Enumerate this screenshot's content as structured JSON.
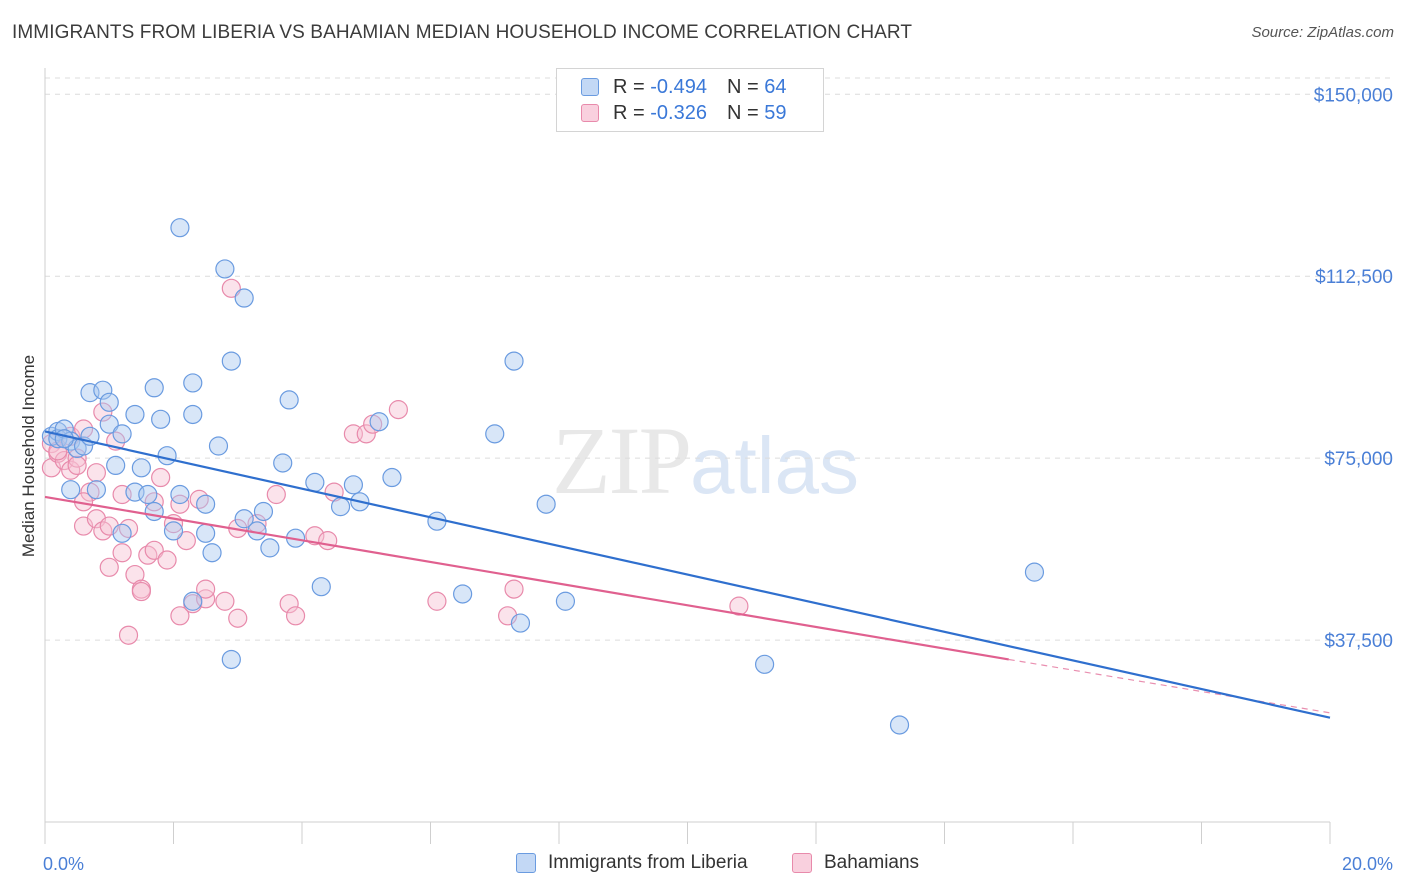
{
  "header": {
    "title": "IMMIGRANTS FROM LIBERIA VS BAHAMIAN MEDIAN HOUSEHOLD INCOME CORRELATION CHART",
    "source": "Source: ZipAtlas.com"
  },
  "watermark": {
    "zip": "ZIP",
    "atlas": "atlas"
  },
  "legend": {
    "rows": [
      {
        "r_label": "R = ",
        "r_value": "-0.494",
        "n_label": "N = ",
        "n_value": "64"
      },
      {
        "r_label": "R = ",
        "r_value": "-0.326",
        "n_label": "N = ",
        "n_value": "59"
      }
    ]
  },
  "colors": {
    "blue_fill": "#a9c8f0",
    "blue_stroke": "#6a9be0",
    "blue_line": "#2f6fce",
    "pink_fill": "#f6c0d2",
    "pink_stroke": "#e88aab",
    "pink_line": "#e0608f",
    "grid": "#dcdcdc",
    "tick_text": "#4a7fd6"
  },
  "chart_data": {
    "type": "scatter",
    "title": "IMMIGRANTS FROM LIBERIA VS BAHAMIAN MEDIAN HOUSEHOLD INCOME CORRELATION CHART",
    "xlabel": "",
    "ylabel": "Median Household Income",
    "xlim": [
      0,
      20
    ],
    "ylim": [
      0,
      155000
    ],
    "x_tick_labels": [
      "0.0%",
      "20.0%"
    ],
    "y_ticks": [
      {
        "value": 37500,
        "label": "$37,500"
      },
      {
        "value": 75000,
        "label": "$75,000"
      },
      {
        "value": 112500,
        "label": "$112,500"
      },
      {
        "value": 150000,
        "label": "$150,000"
      }
    ],
    "series": [
      {
        "name": "Immigrants from Liberia",
        "color": "blue",
        "trend": {
          "x0": 0,
          "y0": 80500,
          "x1": 20,
          "y1": 21500
        },
        "points": [
          [
            0.1,
            79500
          ],
          [
            0.2,
            80500
          ],
          [
            0.2,
            79000
          ],
          [
            0.3,
            81000
          ],
          [
            0.4,
            78500
          ],
          [
            0.4,
            68500
          ],
          [
            0.5,
            77000
          ],
          [
            0.6,
            77500
          ],
          [
            0.7,
            88500
          ],
          [
            0.7,
            79500
          ],
          [
            0.8,
            68500
          ],
          [
            0.9,
            89000
          ],
          [
            1.0,
            82000
          ],
          [
            1.0,
            86500
          ],
          [
            1.1,
            73500
          ],
          [
            1.2,
            80000
          ],
          [
            1.2,
            59500
          ],
          [
            1.4,
            84000
          ],
          [
            1.4,
            68000
          ],
          [
            1.5,
            73000
          ],
          [
            1.6,
            67500
          ],
          [
            1.7,
            89500
          ],
          [
            1.7,
            64000
          ],
          [
            1.8,
            83000
          ],
          [
            1.9,
            75500
          ],
          [
            2.0,
            60000
          ],
          [
            2.1,
            122500
          ],
          [
            2.1,
            67500
          ],
          [
            2.3,
            90500
          ],
          [
            2.3,
            84000
          ],
          [
            2.3,
            45500
          ],
          [
            2.5,
            65500
          ],
          [
            2.5,
            59500
          ],
          [
            2.6,
            55500
          ],
          [
            2.7,
            77500
          ],
          [
            2.8,
            114000
          ],
          [
            2.9,
            95000
          ],
          [
            2.9,
            33500
          ],
          [
            3.1,
            108000
          ],
          [
            3.1,
            62500
          ],
          [
            3.3,
            60000
          ],
          [
            3.4,
            64000
          ],
          [
            3.5,
            56500
          ],
          [
            3.7,
            74000
          ],
          [
            3.8,
            87000
          ],
          [
            3.9,
            58500
          ],
          [
            4.2,
            70000
          ],
          [
            4.3,
            48500
          ],
          [
            4.6,
            65000
          ],
          [
            4.8,
            69500
          ],
          [
            4.9,
            66000
          ],
          [
            5.2,
            82500
          ],
          [
            5.4,
            71000
          ],
          [
            6.1,
            62000
          ],
          [
            6.5,
            47000
          ],
          [
            7.0,
            80000
          ],
          [
            7.3,
            95000
          ],
          [
            7.4,
            41000
          ],
          [
            7.8,
            65500
          ],
          [
            8.1,
            45500
          ],
          [
            11.2,
            32500
          ],
          [
            13.3,
            20000
          ],
          [
            15.4,
            51500
          ],
          [
            0.3,
            79000
          ]
        ]
      },
      {
        "name": "Bahamians",
        "color": "pink",
        "trend": {
          "x0": 0,
          "y0": 67000,
          "x1": 15.0,
          "y1": 33500,
          "dash_x1": 20,
          "dash_y1": 22500
        },
        "points": [
          [
            0.1,
            78000
          ],
          [
            0.1,
            73000
          ],
          [
            0.2,
            76000
          ],
          [
            0.3,
            74500
          ],
          [
            0.4,
            72500
          ],
          [
            0.4,
            79500
          ],
          [
            0.5,
            75000
          ],
          [
            0.5,
            73500
          ],
          [
            0.6,
            81000
          ],
          [
            0.6,
            61000
          ],
          [
            0.7,
            68000
          ],
          [
            0.8,
            62500
          ],
          [
            0.8,
            72000
          ],
          [
            0.9,
            60000
          ],
          [
            0.9,
            84500
          ],
          [
            1.0,
            61000
          ],
          [
            1.0,
            52500
          ],
          [
            1.1,
            78500
          ],
          [
            1.2,
            67500
          ],
          [
            1.2,
            55500
          ],
          [
            1.3,
            60500
          ],
          [
            1.3,
            38500
          ],
          [
            1.4,
            51000
          ],
          [
            1.5,
            48000
          ],
          [
            1.5,
            47500
          ],
          [
            1.6,
            55000
          ],
          [
            1.7,
            56000
          ],
          [
            1.7,
            66000
          ],
          [
            1.8,
            71000
          ],
          [
            1.9,
            54000
          ],
          [
            2.0,
            61500
          ],
          [
            2.1,
            65500
          ],
          [
            2.1,
            42500
          ],
          [
            2.2,
            58000
          ],
          [
            2.3,
            45000
          ],
          [
            2.4,
            66500
          ],
          [
            2.5,
            46000
          ],
          [
            2.5,
            48000
          ],
          [
            2.8,
            45500
          ],
          [
            2.9,
            110000
          ],
          [
            3.0,
            60500
          ],
          [
            3.0,
            42000
          ],
          [
            3.3,
            61500
          ],
          [
            3.6,
            67500
          ],
          [
            3.8,
            45000
          ],
          [
            3.9,
            42500
          ],
          [
            4.2,
            59000
          ],
          [
            4.4,
            58000
          ],
          [
            4.5,
            68000
          ],
          [
            4.8,
            80000
          ],
          [
            5.0,
            80000
          ],
          [
            5.1,
            82000
          ],
          [
            5.5,
            85000
          ],
          [
            6.1,
            45500
          ],
          [
            7.2,
            42500
          ],
          [
            7.3,
            48000
          ],
          [
            10.8,
            44500
          ],
          [
            0.2,
            76500
          ],
          [
            0.6,
            66000
          ]
        ]
      }
    ]
  },
  "bottom_legend": {
    "items": [
      {
        "label": "Immigrants from Liberia"
      },
      {
        "label": "Bahamians"
      }
    ]
  }
}
